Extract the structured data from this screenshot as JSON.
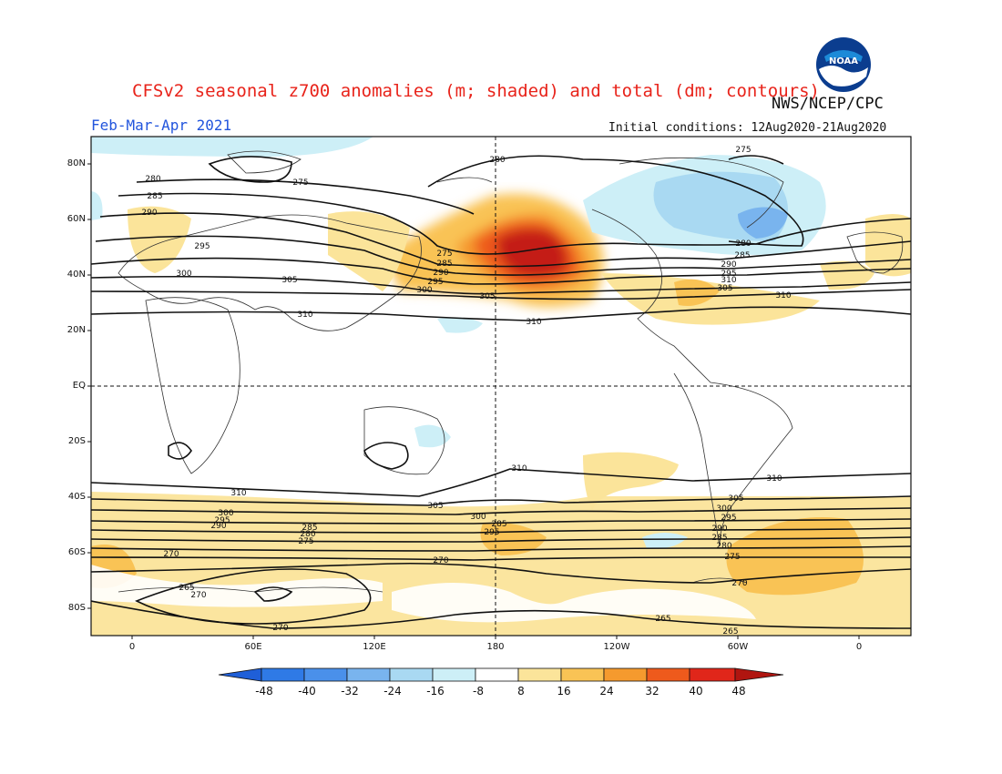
{
  "title": "CFSv2 seasonal z700 anomalies (m; shaded) and total (dm; contours)",
  "agency": "NWS/NCEP/CPC",
  "season": "Feb-Mar-Apr 2021",
  "initial_conditions": "Initial conditions: 12Aug2020-21Aug2020",
  "logo": {
    "text": "NOAA",
    "icon": "noaa-logo-icon"
  },
  "lat_labels": [
    "80N",
    "60N",
    "40N",
    "20N",
    "EQ",
    "20S",
    "40S",
    "60S",
    "80S"
  ],
  "lon_labels": [
    "0",
    "60E",
    "120E",
    "180",
    "120W",
    "60W",
    "0"
  ],
  "colorbar": {
    "labels": [
      "-48",
      "-40",
      "-32",
      "-24",
      "-16",
      "-8",
      "8",
      "16",
      "24",
      "32",
      "40",
      "48"
    ],
    "colors": [
      "#1f5fd8",
      "#2f7ae6",
      "#4a90ea",
      "#79b4ee",
      "#a9d9f2",
      "#cdeff7",
      "#ffffff",
      "#fbe49a",
      "#f9c355",
      "#f59a2e",
      "#ee5a1c",
      "#e0261a",
      "#b01510"
    ]
  },
  "contour_labels": {
    "north": [
      "280",
      "275",
      "280",
      "285",
      "290",
      "295",
      "300",
      "305",
      "310",
      "275",
      "285",
      "290",
      "295",
      "300",
      "305",
      "310",
      "275",
      "280",
      "285",
      "290",
      "295",
      "305",
      "310",
      "310"
    ],
    "south": [
      "310",
      "310",
      "310",
      "305",
      "300",
      "295",
      "290",
      "285",
      "280",
      "275",
      "270",
      "265",
      "270",
      "270",
      "305",
      "300",
      "295",
      "285",
      "300",
      "295",
      "290",
      "285",
      "280",
      "275",
      "270",
      "265",
      "265",
      "270"
    ]
  }
}
